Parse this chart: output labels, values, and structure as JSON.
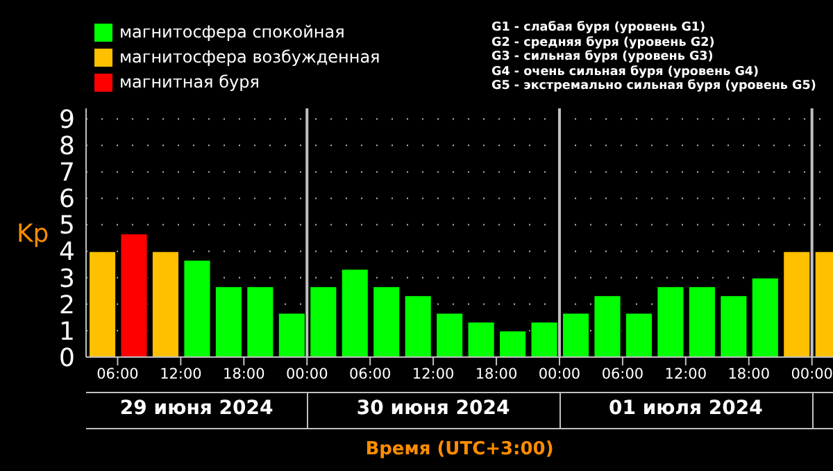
{
  "chart_data": {
    "type": "bar",
    "stacked": true,
    "x": [
      "2024-06-29T04:30",
      "2024-06-29T07:30",
      "2024-06-29T10:30",
      "2024-06-29T13:30",
      "2024-06-29T16:30",
      "2024-06-29T19:30",
      "2024-06-29T22:30",
      "2024-06-30T01:30",
      "2024-06-30T04:30",
      "2024-06-30T07:30",
      "2024-06-30T10:30",
      "2024-06-30T13:30",
      "2024-06-30T16:30",
      "2024-06-30T19:30",
      "2024-06-30T22:30",
      "2024-07-01T01:30",
      "2024-07-01T04:30",
      "2024-07-01T07:30",
      "2024-07-01T10:30",
      "2024-07-01T13:30",
      "2024-07-01T16:30",
      "2024-07-01T19:30",
      "2024-07-01T22:30",
      "2024-07-02T01:30"
    ],
    "series": [
      {
        "name": "магнитосфера спокойная",
        "color": "#00ff00",
        "values": [
          null,
          null,
          null,
          3.67,
          2.67,
          2.67,
          1.67,
          2.67,
          3.33,
          2.67,
          2.33,
          1.67,
          1.33,
          1.0,
          1.33,
          1.67,
          2.33,
          1.67,
          2.67,
          2.67,
          2.33,
          3.0,
          null,
          null
        ]
      },
      {
        "name": "магнитосфера возбужденная",
        "color": "#ffc000",
        "values": [
          4.0,
          null,
          4.0,
          null,
          null,
          null,
          null,
          null,
          null,
          null,
          null,
          null,
          null,
          null,
          null,
          null,
          null,
          null,
          null,
          null,
          null,
          null,
          4.0,
          4.0
        ]
      },
      {
        "name": "магнитная буря",
        "color": "#ff0000",
        "values": [
          null,
          4.67,
          null,
          null,
          null,
          null,
          null,
          null,
          null,
          null,
          null,
          null,
          null,
          null,
          null,
          null,
          null,
          null,
          null,
          null,
          null,
          null,
          null,
          null
        ]
      }
    ],
    "ylabel": "Kp",
    "xlabel": "Время (UTC+3:00)",
    "ylim": [
      0,
      9.4
    ],
    "yticks": [
      0,
      1,
      2,
      3,
      4,
      5,
      6,
      7,
      8,
      9
    ],
    "xlim": [
      "2024-06-29T03:00",
      "2024-07-02T02:00"
    ],
    "xticks": [
      {
        "value": "2024-06-29T06:00",
        "label": "06:00"
      },
      {
        "value": "2024-06-29T12:00",
        "label": "12:00"
      },
      {
        "value": "2024-06-29T18:00",
        "label": "18:00"
      },
      {
        "value": "2024-06-30T00:00",
        "label": "00:00"
      },
      {
        "value": "2024-06-30T06:00",
        "label": "06:00"
      },
      {
        "value": "2024-06-30T12:00",
        "label": "12:00"
      },
      {
        "value": "2024-06-30T18:00",
        "label": "18:00"
      },
      {
        "value": "2024-07-01T00:00",
        "label": "00:00"
      },
      {
        "value": "2024-07-01T06:00",
        "label": "06:00"
      },
      {
        "value": "2024-07-01T12:00",
        "label": "12:00"
      },
      {
        "value": "2024-07-01T18:00",
        "label": "18:00"
      },
      {
        "value": "2024-07-02T00:00",
        "label": "00:00"
      }
    ],
    "ref_lines": [
      {
        "axis": "x",
        "value": "2024-06-30T00:00",
        "color": "#c0c0c0"
      },
      {
        "axis": "x",
        "value": "2024-07-01T00:00",
        "color": "#c0c0c0"
      },
      {
        "axis": "x",
        "value": "2024-07-02T00:00",
        "color": "#c0c0c0"
      }
    ],
    "annotations": [
      "29 июня 2024",
      "30 июня 2024",
      "01 июля 2024",
      "G1 - слабая буря (уровень G1)",
      "G2 - средняя буря (уровень G2)",
      "G3 - сильная буря (уровень G3)",
      "G4 - очень сильная буря (уровень G4)",
      "G5 - экстремально сильная буря (уровень G5)"
    ],
    "grid": "y",
    "legend": "top left"
  }
}
